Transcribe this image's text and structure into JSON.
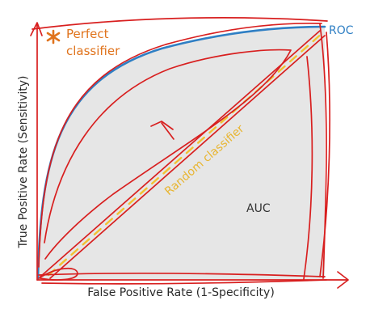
{
  "labels": {
    "perfect_line1": "Perfect",
    "perfect_line2": "classifier",
    "roc": "ROC",
    "random": "Random classifier",
    "auc": "AUC",
    "xlabel": "False Positive Rate (1-Specificity)",
    "ylabel": "True Positive Rate (Sensitivity)"
  },
  "colors": {
    "background": "#ffffff",
    "auc_fill": "#e6e6e6",
    "roc_curve": "#2f7fc4",
    "axes_and_sketch": "#d81f1f",
    "random_line": "#f2c232",
    "random_text": "#e8b531",
    "perfect_text": "#e0731c",
    "dark_text": "#2a2a2a"
  },
  "icons": {
    "perfect_marker": "asterisk-icon"
  }
}
